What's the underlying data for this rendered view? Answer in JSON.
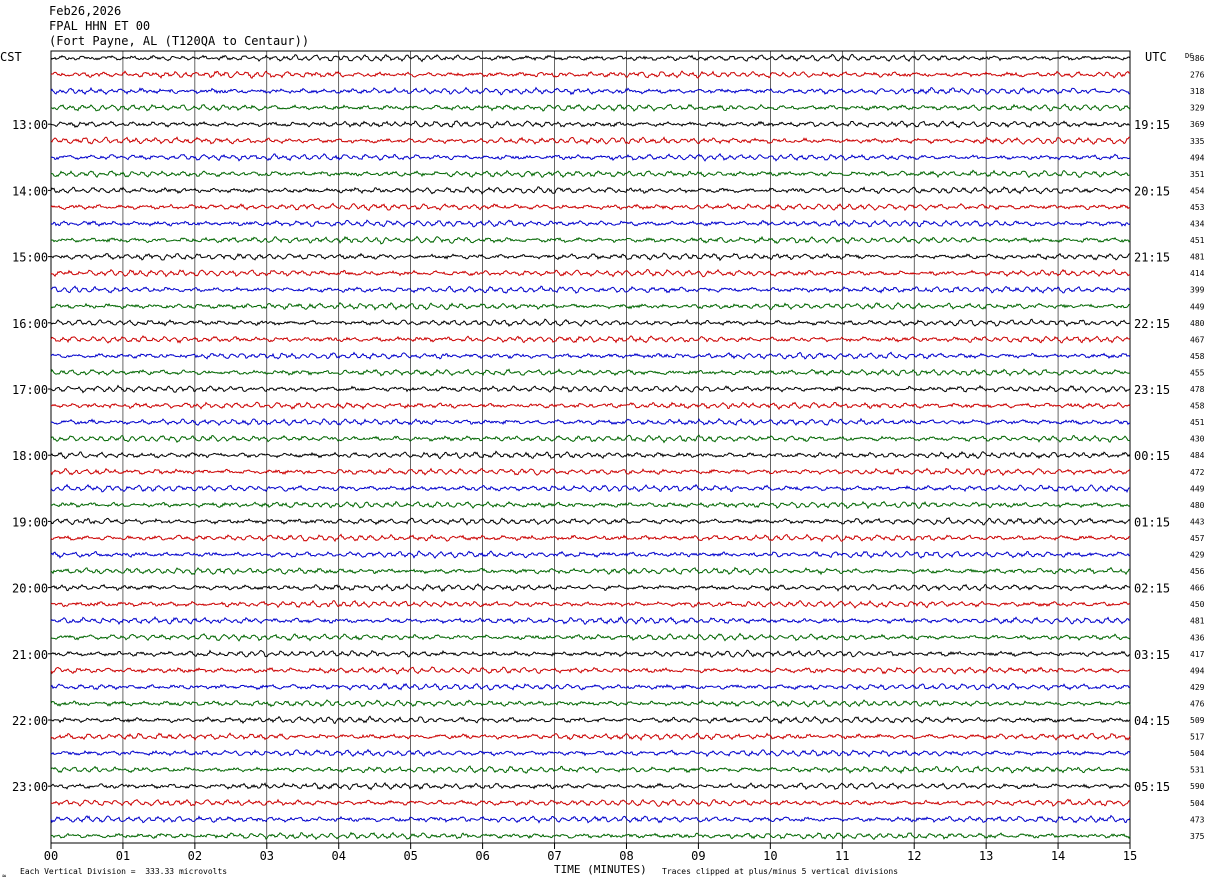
{
  "header": {
    "date": "Feb26,2026",
    "station": "FPAL HHN ET 00",
    "location": "(Fort Payne, AL (T120QA to Centaur))"
  },
  "chart_data": {
    "type": "line",
    "title": "",
    "xlabel": "TIME (MINUTES)",
    "x_ticks": [
      "00",
      "01",
      "02",
      "03",
      "04",
      "05",
      "06",
      "07",
      "08",
      "09",
      "10",
      "11",
      "12",
      "13",
      "14",
      "15"
    ],
    "left_axis_label": "CST",
    "right_axis_label": "UTC",
    "dc_label": "DC",
    "left_hour_labels": [
      "13:00",
      "14:00",
      "15:00",
      "16:00",
      "17:00",
      "18:00",
      "19:00",
      "20:00",
      "21:00",
      "22:00",
      "23:00"
    ],
    "right_hour_labels": [
      "19:15",
      "20:15",
      "21:15",
      "22:15",
      "23:15",
      "00:15",
      "01:15",
      "02:15",
      "03:15",
      "04:15",
      "05:15"
    ],
    "first_labeled_row": 4,
    "rows_per_hour": 4,
    "trace_colors": [
      "#000000",
      "#cc0000",
      "#0000cc",
      "#006600"
    ],
    "dc_values": [
      386,
      276,
      318,
      329,
      369,
      335,
      494,
      351,
      454,
      453,
      434,
      451,
      481,
      414,
      399,
      449,
      480,
      467,
      458,
      455,
      478,
      458,
      451,
      430,
      484,
      472,
      449,
      480,
      443,
      457,
      429,
      456,
      466,
      450,
      481,
      436,
      417,
      494,
      429,
      476,
      509,
      517,
      504,
      531,
      590,
      504,
      473,
      375
    ],
    "grid": true
  },
  "footer": {
    "scale_text": "Each Vertical Division =  333.33 microvolts",
    "clip_text": "Traces clipped at plus/minus 5 vertical divisions"
  }
}
